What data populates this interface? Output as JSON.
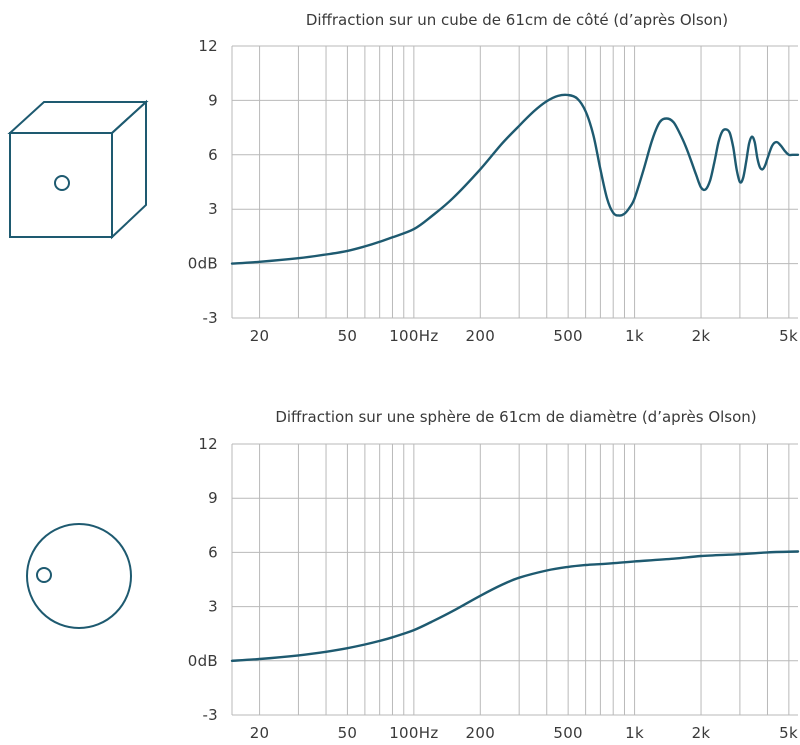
{
  "chart_data": [
    {
      "type": "line",
      "title": "Diffraction sur un cube de 61cm de côté (d’après Olson)",
      "x_scale": "log",
      "xlim": [
        15,
        5500
      ],
      "ylim": [
        -3,
        12
      ],
      "grid": true,
      "y_ticks": [
        {
          "value": 12,
          "label": "12"
        },
        {
          "value": 9,
          "label": "9"
        },
        {
          "value": 6,
          "label": "6"
        },
        {
          "value": 3,
          "label": "3"
        },
        {
          "value": 0,
          "label": "0dB"
        },
        {
          "value": -3,
          "label": "-3"
        }
      ],
      "x_tick_labels": [
        {
          "value": 20,
          "label": "20"
        },
        {
          "value": 50,
          "label": "50"
        },
        {
          "value": 100,
          "label": "100Hz"
        },
        {
          "value": 200,
          "label": "200"
        },
        {
          "value": 500,
          "label": "500"
        },
        {
          "value": 1000,
          "label": "1k"
        },
        {
          "value": 2000,
          "label": "2k"
        },
        {
          "value": 5000,
          "label": "5k"
        }
      ],
      "x": [
        15,
        20,
        30,
        40,
        50,
        60,
        70,
        80,
        100,
        120,
        150,
        200,
        250,
        300,
        350,
        400,
        450,
        500,
        550,
        600,
        650,
        700,
        750,
        800,
        850,
        900,
        950,
        1000,
        1100,
        1200,
        1300,
        1400,
        1500,
        1600,
        1700,
        1800,
        1900,
        2000,
        2100,
        2200,
        2300,
        2400,
        2500,
        2600,
        2700,
        2800,
        2900,
        3000,
        3100,
        3200,
        3300,
        3400,
        3500,
        3600,
        3700,
        3800,
        3900,
        4000,
        4200,
        4400,
        4600,
        4800,
        5000,
        5200,
        5500
      ],
      "y": [
        0.0,
        0.1,
        0.3,
        0.5,
        0.7,
        0.95,
        1.2,
        1.45,
        1.9,
        2.6,
        3.6,
        5.2,
        6.6,
        7.6,
        8.4,
        8.95,
        9.25,
        9.3,
        9.1,
        8.4,
        7.1,
        5.2,
        3.6,
        2.8,
        2.65,
        2.75,
        3.1,
        3.6,
        5.2,
        6.8,
        7.8,
        8.0,
        7.8,
        7.2,
        6.5,
        5.7,
        4.9,
        4.2,
        4.1,
        4.6,
        5.6,
        6.7,
        7.3,
        7.4,
        7.2,
        6.4,
        5.2,
        4.5,
        4.7,
        5.6,
        6.6,
        7.0,
        6.7,
        5.8,
        5.3,
        5.2,
        5.4,
        5.8,
        6.5,
        6.7,
        6.5,
        6.2,
        6.0,
        6.0,
        6.0
      ]
    },
    {
      "type": "line",
      "title": "Diffraction sur une sphère de 61cm de diamètre (d’après Olson)",
      "x_scale": "log",
      "xlim": [
        15,
        5500
      ],
      "ylim": [
        -3,
        12
      ],
      "grid": true,
      "y_ticks": [
        {
          "value": 12,
          "label": "12"
        },
        {
          "value": 9,
          "label": "9"
        },
        {
          "value": 6,
          "label": "6"
        },
        {
          "value": 3,
          "label": "3"
        },
        {
          "value": 0,
          "label": "0dB"
        },
        {
          "value": -3,
          "label": "-3"
        }
      ],
      "x_tick_labels": [
        {
          "value": 20,
          "label": "20"
        },
        {
          "value": 50,
          "label": "50"
        },
        {
          "value": 100,
          "label": "100Hz"
        },
        {
          "value": 200,
          "label": "200"
        },
        {
          "value": 500,
          "label": "500"
        },
        {
          "value": 1000,
          "label": "1k"
        },
        {
          "value": 2000,
          "label": "2k"
        },
        {
          "value": 5000,
          "label": "5k"
        }
      ],
      "x": [
        15,
        20,
        30,
        40,
        50,
        60,
        70,
        80,
        100,
        120,
        150,
        200,
        250,
        300,
        400,
        500,
        600,
        700,
        800,
        1000,
        1500,
        2000,
        3000,
        4000,
        5500
      ],
      "y": [
        0.0,
        0.1,
        0.3,
        0.5,
        0.7,
        0.9,
        1.1,
        1.3,
        1.7,
        2.15,
        2.75,
        3.6,
        4.2,
        4.6,
        5.0,
        5.2,
        5.3,
        5.35,
        5.4,
        5.5,
        5.65,
        5.8,
        5.9,
        6.0,
        6.05
      ]
    }
  ]
}
